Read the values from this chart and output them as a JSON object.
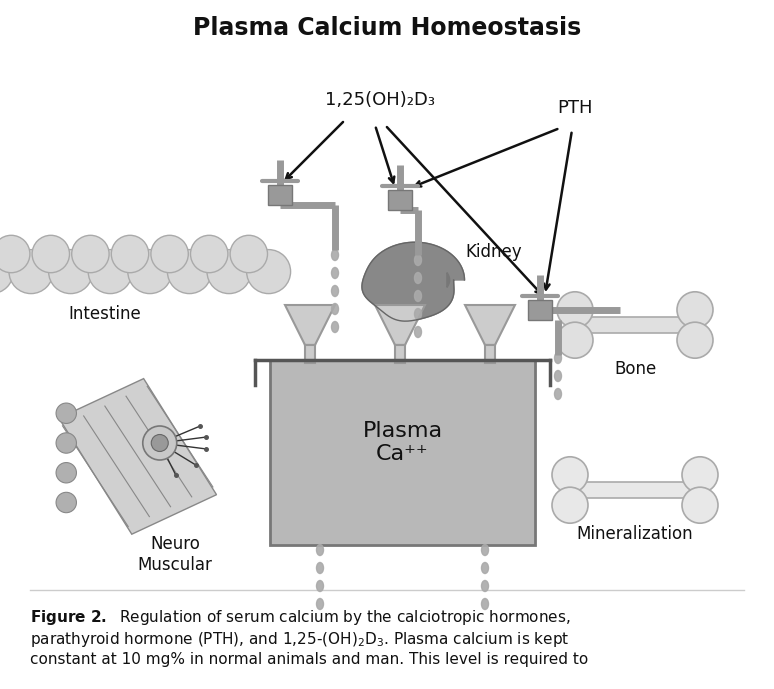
{
  "title": "Plasma Calcium Homeostasis",
  "title_fontsize": 17,
  "title_fontweight": "bold",
  "bg_color": "#ffffff",
  "label_hormone": "1,25(OH)₂D₃",
  "label_PTH": "PTH",
  "label_intestine": "Intestine",
  "label_kidney": "Kidney",
  "label_bone": "Bone",
  "label_neuromuscular": "Neuro\nMuscular",
  "label_plasma": "Plasma\nCa⁺⁺",
  "label_mineralization": "Mineralization",
  "gray_light": "#d8d8d8",
  "gray_mid": "#aaaaaa",
  "gray_dark": "#777777",
  "gray_box": "#b8b8b8",
  "gray_kidney": "#888888",
  "drop_color": "#aaaaaa",
  "arrow_color": "#111111",
  "text_color": "#111111",
  "font_size_labels": 12,
  "font_size_small": 11,
  "faucet_color": "#999999",
  "pipe_color": "#aaaaaa",
  "bone_fill": "#e8e8e8",
  "bone_edge": "#aaaaaa",
  "neuro_fill": "#cccccc",
  "neuro_edge": "#777777",
  "intestine_fill": "#e0e0e0",
  "intestine_edge": "#aaaaaa"
}
